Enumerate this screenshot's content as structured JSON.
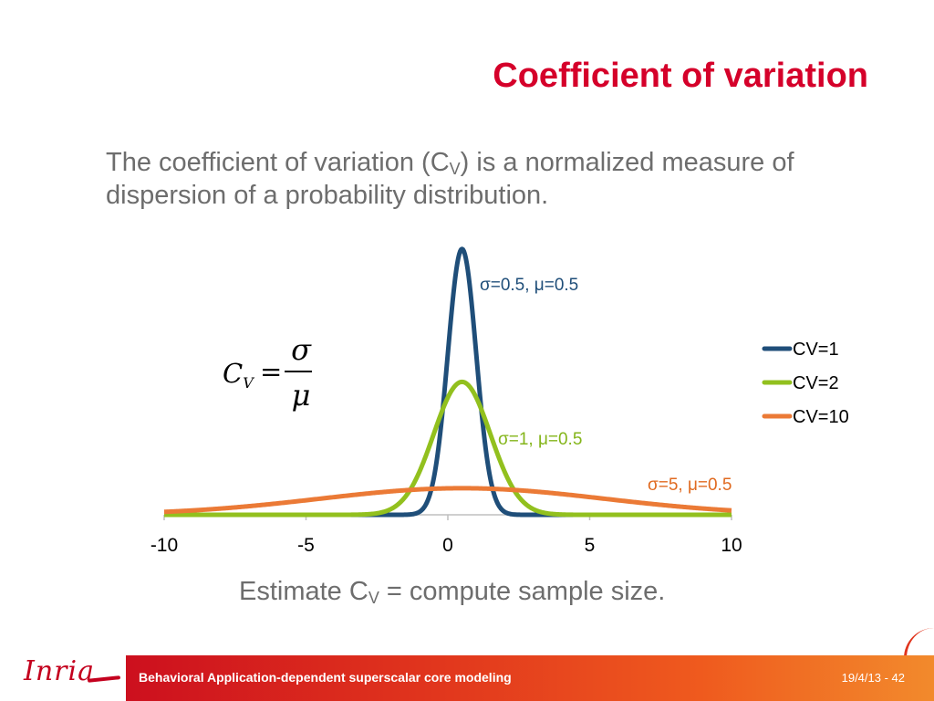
{
  "slide": {
    "title": "Coefficient of variation",
    "intro_part1": "The coefficient of variation (C",
    "intro_sub": "V",
    "intro_part2": ") is a normalized measure of dispersion of a probability distribution.",
    "estimate_part1": "Estimate C",
    "estimate_sub": "V",
    "estimate_part2": " = compute sample size.",
    "formula": {
      "lhs": "C",
      "lhs_sub": "V",
      "eq": "=",
      "numerator": "σ",
      "denominator": "μ"
    }
  },
  "footer": {
    "logo": "Inria",
    "text": "Behavioral Application-dependent superscalar core modeling",
    "date_page": "19/4/13 - 42"
  },
  "chart_data": {
    "type": "line",
    "x_range": [
      -10,
      10
    ],
    "x_ticks": [
      "-10",
      "-5",
      "0",
      "5",
      "10"
    ],
    "y_max": 0.8,
    "legend_position": "right",
    "grid": false,
    "series": [
      {
        "name": "CV=1",
        "color": "#1f4e79",
        "mu": 0.5,
        "sigma": 0.5,
        "annotation": "σ=0.5, μ=0.5",
        "annotation_color": "#1f4e79"
      },
      {
        "name": "CV=2",
        "color": "#92c01e",
        "mu": 0.5,
        "sigma": 1,
        "annotation": "σ=1, μ=0.5",
        "annotation_color": "#84b51a"
      },
      {
        "name": "CV=10",
        "color": "#eb7a36",
        "mu": 0.5,
        "sigma": 5,
        "annotation": "σ=5, μ=0.5",
        "annotation_color": "#e06a20"
      }
    ]
  }
}
